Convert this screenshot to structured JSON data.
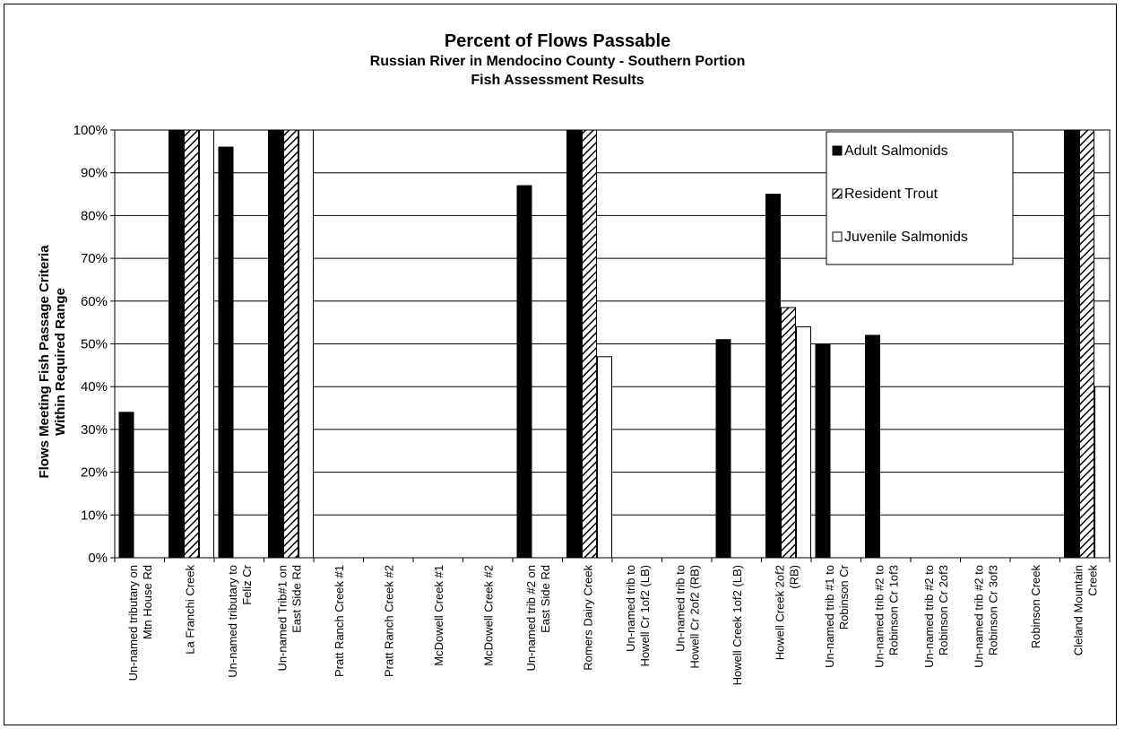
{
  "chart_data": {
    "type": "bar",
    "title": "Percent of Flows Passable",
    "subtitle": [
      "Russian River in Mendocino County - Southern Portion",
      "Fish Assessment Results"
    ],
    "xlabel": "",
    "ylabel": "Flows Meeting Fish Passage Criteria Within Required Range",
    "ylim": [
      0,
      100
    ],
    "yticks": [
      "0%",
      "10%",
      "20%",
      "30%",
      "40%",
      "50%",
      "60%",
      "70%",
      "80%",
      "90%",
      "100%"
    ],
    "grid": true,
    "legend_position": "top-right",
    "categories": [
      [
        "Un-named tributary on",
        "Mtn House Rd"
      ],
      [
        "La Franchi Creek"
      ],
      [
        "Un-named tributary to",
        "Feliz Cr"
      ],
      [
        "Un-named Trib#1 on",
        "East Side Rd"
      ],
      [
        "Pratt Ranch Creek #1"
      ],
      [
        "Pratt Ranch Creek #2"
      ],
      [
        "McDowell Creek #1"
      ],
      [
        "McDowell Creek #2"
      ],
      [
        "Un-named trib #2 on",
        "East Side Rd"
      ],
      [
        "Romers Dairy Creek"
      ],
      [
        "Un-named trib to",
        "Howell Cr 1of2 (LB)"
      ],
      [
        "Un-named trib to",
        "Howell Cr 2of2 (RB)"
      ],
      [
        "Howell Creek 1of2 (LB)"
      ],
      [
        "Howell Creek 2of2",
        "(RB)"
      ],
      [
        "Un-named trib #1 to",
        "Robinson Cr"
      ],
      [
        "Un-named trib #2 to",
        "Robinson Cr 1of3"
      ],
      [
        "Un-named trib #2 to",
        "Robinson Cr 2of3"
      ],
      [
        "Un-named trib #2 to",
        "Robinson Cr 3of3"
      ],
      [
        "Robinson Creek"
      ],
      [
        "Cleland Mountain",
        "Creek"
      ]
    ],
    "series": [
      {
        "name": "Adult Salmonids",
        "fill": "#000000",
        "pattern": "solid",
        "values": [
          34,
          100,
          96,
          100,
          0,
          0,
          0,
          0,
          87,
          100,
          0,
          0,
          51,
          85,
          50,
          52,
          0,
          0,
          0,
          100
        ]
      },
      {
        "name": "Resident Trout",
        "fill": "#ffffff",
        "pattern": "diagonal-hatch",
        "values": [
          0,
          100,
          0,
          100,
          0,
          0,
          0,
          0,
          0,
          100,
          0,
          0,
          0,
          58.5,
          0,
          0,
          0,
          0,
          0,
          100
        ]
      },
      {
        "name": "Juvenile Salmonids",
        "fill": "#ffffff",
        "pattern": "empty",
        "values": [
          0,
          100,
          0,
          100,
          0,
          0,
          0,
          0,
          0,
          47,
          0,
          0,
          0,
          54,
          0,
          0,
          0,
          0,
          0,
          40
        ]
      }
    ]
  }
}
